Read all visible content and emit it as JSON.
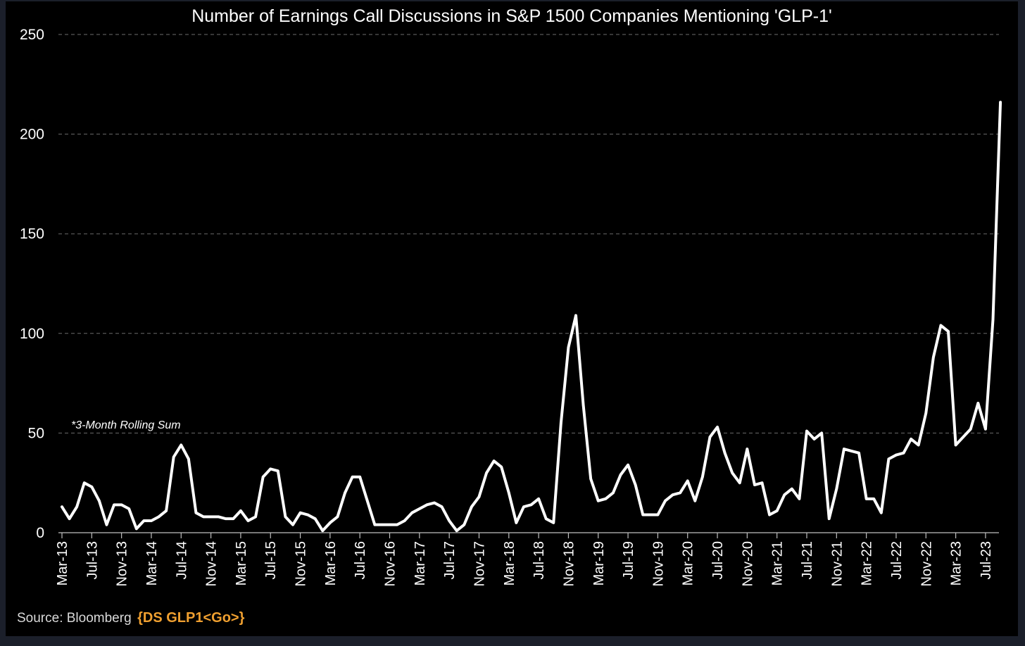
{
  "chart_data": {
    "type": "line",
    "title": "Number of Earnings Call Discussions in S&P 1500 Companies Mentioning 'GLP-1'",
    "xlabel": "",
    "ylabel": "",
    "ylim": [
      0,
      250
    ],
    "yticks": [
      "0",
      "50",
      "100",
      "150",
      "200",
      "250"
    ],
    "grid": true,
    "x_tick_labels": [
      "Mar-13",
      "Jul-13",
      "Nov-13",
      "Mar-14",
      "Jul-14",
      "Nov-14",
      "Mar-15",
      "Jul-15",
      "Nov-15",
      "Mar-16",
      "Jul-16",
      "Nov-16",
      "Mar-17",
      "Jul-17",
      "Nov-17",
      "Mar-18",
      "Jul-18",
      "Nov-18",
      "Mar-19",
      "Jul-19",
      "Nov-19",
      "Mar-20",
      "Jul-20",
      "Nov-20",
      "Mar-21",
      "Jul-21",
      "Nov-21",
      "Mar-22",
      "Jul-22",
      "Nov-22",
      "Mar-23",
      "Jul-23"
    ],
    "x_start": "Mar-13",
    "annotation": "*3-Month Rolling Sum",
    "series": [
      {
        "color": "#ffffff",
        "values": [
          13,
          7,
          13,
          25,
          23,
          16,
          4,
          14,
          14,
          12,
          2,
          6,
          6,
          8,
          11,
          38,
          44,
          37,
          10,
          8,
          8,
          8,
          7,
          7,
          11,
          6,
          8,
          28,
          32,
          31,
          8,
          4,
          10,
          9,
          7,
          1,
          5,
          8,
          20,
          28,
          28,
          16,
          4,
          4,
          4,
          4,
          6,
          10,
          12,
          14,
          15,
          13,
          6,
          1,
          4,
          13,
          18,
          30,
          36,
          33,
          20,
          5,
          13,
          14,
          17,
          7,
          5,
          55,
          93,
          109,
          64,
          27,
          16,
          17,
          20,
          29,
          34,
          24,
          9,
          9,
          9,
          16,
          19,
          20,
          26,
          16,
          28,
          48,
          53,
          40,
          30,
          25,
          42,
          24,
          25,
          9,
          11,
          19,
          22,
          17,
          51,
          47,
          50,
          7,
          22,
          42,
          41,
          40,
          17,
          17,
          10,
          37,
          39,
          40,
          47,
          44,
          60,
          88,
          104,
          101,
          44,
          48,
          52,
          65,
          52,
          107,
          216
        ]
      }
    ]
  },
  "source": {
    "label": "Source: Bloomberg",
    "code": "{DS GLP1<Go>}"
  }
}
